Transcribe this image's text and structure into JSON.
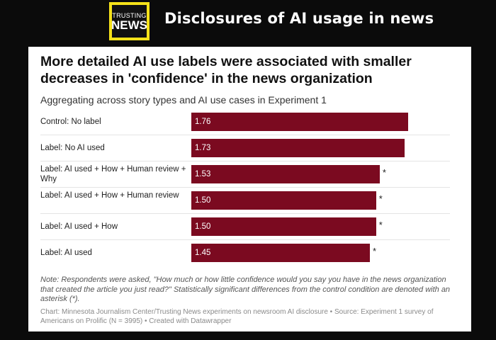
{
  "header": {
    "logo_line1": "TRUSTING",
    "logo_line2": "NEWS",
    "title": "Disclosures of AI usage in news"
  },
  "chart_data": {
    "type": "bar",
    "orientation": "horizontal",
    "title": "More detailed AI use labels were associated with smaller decreases in 'confidence' in the news organization",
    "subtitle": "Aggregating across story types and AI use cases in Experiment 1",
    "categories": [
      "Control: No label",
      "Label: No AI used",
      "Label: AI used + How + Human review + Why",
      "Label: AI used + How + Human review",
      "Label: AI used + How",
      "Label: AI used"
    ],
    "values": [
      1.76,
      1.73,
      1.53,
      1.5,
      1.5,
      1.45
    ],
    "value_labels": [
      "1.76",
      "1.73",
      "1.53",
      "1.50",
      "1.50",
      "1.45"
    ],
    "significant_markers": [
      "",
      "",
      "*",
      "*",
      "*",
      "*"
    ],
    "xlim": [
      0,
      2.1
    ],
    "colors": {
      "bar": "#7b0a20"
    },
    "note": "Note: Respondents were asked, \"How much or how little confidence would you say you have in the news organization that created the article you just read?\" Statistically significant differences from the control condition are denoted with an asterisk (*).",
    "source": "Chart: Minnesota Journalism Center/Trusting News experiments on newsroom AI disclosure • Source: Experiment 1 survey of Americans on Prolific (N = 3995) • Created with Datawrapper"
  }
}
